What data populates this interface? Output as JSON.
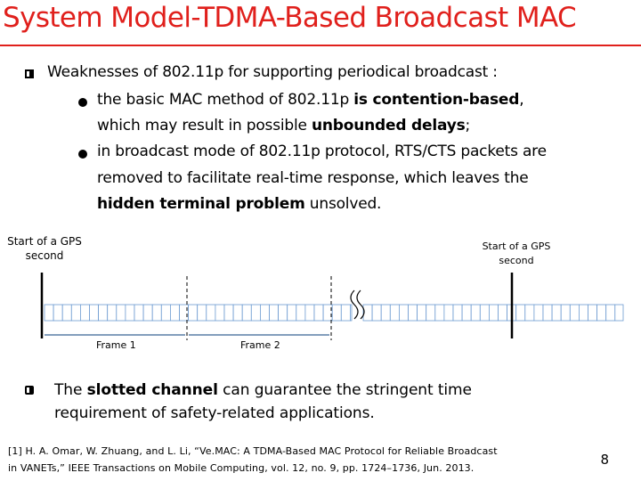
{
  "slide": {
    "title": "System Model-TDMA-Based Broadcast MAC",
    "bullet1": {
      "lead": "Weaknesses of 802.11p for supporting periodical broadcast :",
      "sub1": {
        "l1_a": "the basic MAC method of 802.11p ",
        "l1_b": "is contention-based",
        "l1_c": ",",
        "l2_a": "which may result in possible ",
        "l2_b": "unbounded delays",
        "l2_c": ";"
      },
      "sub2": {
        "l1": "in broadcast mode of 802.11p protocol, RTS/CTS packets are",
        "l2": "removed to facilitate real-time response, which leaves the",
        "l3_b": "hidden terminal problem",
        "l3_c": " unsolved."
      }
    },
    "diagram": {
      "gps_left": [
        "Start of a GPS",
        "second"
      ],
      "gps_right": [
        "Start of a GPS",
        "second"
      ],
      "frame1": "Frame 1",
      "frame2": "Frame 2"
    },
    "bullet2": {
      "l1_a": "The ",
      "l1_b": "slotted channel",
      "l1_c": " can guarantee the stringent time",
      "l2": "requirement of safety-related applications."
    },
    "reference": {
      "l1": "[1] H. A. Omar, W. Zhuang, and L. Li, “Ve.MAC: A TDMA-Based MAC Protocol for Reliable Broadcast",
      "l2": "in VANETs,” IEEE Transactions on Mobile Computing, vol. 12, no. 9, pp. 1724–1736, Jun. 2013."
    },
    "page_number": "8"
  }
}
